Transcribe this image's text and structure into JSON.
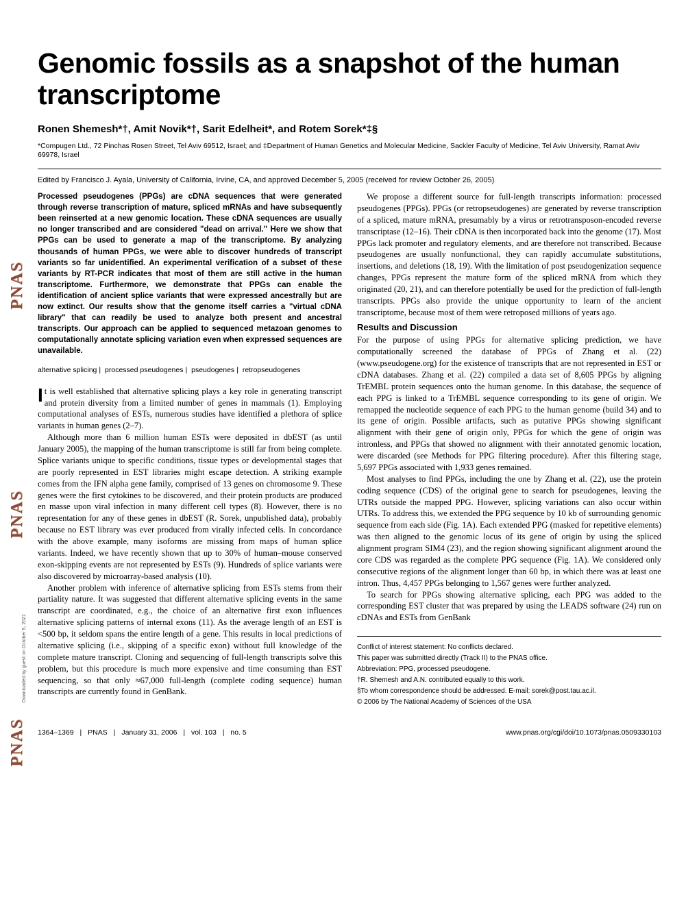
{
  "journal": {
    "strip_label": "PNAS",
    "strip_color": "#8b4a3e",
    "strip_shadow": "#d4b896"
  },
  "title": "Genomic fossils as a snapshot of the human transcriptome",
  "authors": "Ronen Shemesh*†, Amit Novik*†, Sarit Edelheit*, and Rotem Sorek*‡§",
  "affiliation": "*Compugen Ltd., 72 Pinchas Rosen Street, Tel Aviv 69512, Israel; and ‡Department of Human Genetics and Molecular Medicine, Sackler Faculty of Medicine, Tel Aviv University, Ramat Aviv 69978, Israel",
  "edited": "Edited by Francisco J. Ayala, University of California, Irvine, CA, and approved December 5, 2005 (received for review October 26, 2005)",
  "abstract": "Processed pseudogenes (PPGs) are cDNA sequences that were generated through reverse transcription of mature, spliced mRNAs and have subsequently been reinserted at a new genomic location. These cDNA sequences are usually no longer transcribed and are considered \"dead on arrival.\" Here we show that PPGs can be used to generate a map of the transcriptome. By analyzing thousands of human PPGs, we were able to discover hundreds of transcript variants so far unidentified. An experimental verification of a subset of these variants by RT-PCR indicates that most of them are still active in the human transcriptome. Furthermore, we demonstrate that PPGs can enable the identification of ancient splice variants that were expressed ancestrally but are now extinct. Our results show that the genome itself carries a \"virtual cDNA library\" that can readily be used to analyze both present and ancestral transcripts. Our approach can be applied to sequenced metazoan genomes to computationally annotate splicing variation even when expressed sequences are unavailable.",
  "keywords": [
    "alternative splicing",
    "processed pseudogenes",
    "pseudogenes",
    "retropseudogenes"
  ],
  "body": {
    "col1": {
      "p1_dropcap": "I",
      "p1": "t is well established that alternative splicing plays a key role in generating transcript and protein diversity from a limited number of genes in mammals (1). Employing computational analyses of ESTs, numerous studies have identified a plethora of splice variants in human genes (2–7).",
      "p2": "Although more than 6 million human ESTs were deposited in dbEST (as until January 2005), the mapping of the human transcriptome is still far from being complete. Splice variants unique to specific conditions, tissue types or developmental stages that are poorly represented in EST libraries might escape detection. A striking example comes from the IFN alpha gene family, comprised of 13 genes on chromosome 9. These genes were the first cytokines to be discovered, and their protein products are produced en masse upon viral infection in many different cell types (8). However, there is no representation for any of these genes in dbEST (R. Sorek, unpublished data), probably because no EST library was ever produced from virally infected cells. In concordance with the above example, many isoforms are missing from maps of human splice variants. Indeed, we have recently shown that up to 30% of human–mouse conserved exon-skipping events are not represented by ESTs (9). Hundreds of splice variants were also discovered by microarray-based analysis (10).",
      "p3": "Another problem with inference of alternative splicing from ESTs stems from their partiality nature. It was suggested that different alternative splicing events in the same transcript are coordinated, e.g., the choice of an alternative first exon influences alternative splicing patterns of internal exons (11). As the average length of an EST is <500 bp, it seldom spans the entire length of a gene. This results in local predictions of alternative splicing (i.e., skipping of a specific exon) without full knowledge of the complete mature transcript. Cloning and sequencing of full-length transcripts solve this problem, but this procedure is much more expensive and time consuming than EST sequencing, so that only ≈67,000 full-length (complete coding sequence) human transcripts are currently found in GenBank."
    },
    "col2": {
      "p1": "We propose a different source for full-length transcripts information: processed pseudogenes (PPGs). PPGs (or retropseudogenes) are generated by reverse transcription of a spliced, mature mRNA, presumably by a virus or retrotransposon-encoded reverse transcriptase (12–16). Their cDNA is then incorporated back into the genome (17). Most PPGs lack promoter and regulatory elements, and are therefore not transcribed. Because pseudogenes are usually nonfunctional, they can rapidly accumulate substitutions, insertions, and deletions (18, 19). With the limitation of post pseudogenization sequence changes, PPGs represent the mature form of the spliced mRNA from which they originated (20, 21), and can therefore potentially be used for the prediction of full-length transcripts. PPGs also provide the unique opportunity to learn of the ancient transcriptome, because most of them were retroposed millions of years ago.",
      "section_head": "Results and Discussion",
      "p2": "For the purpose of using PPGs for alternative splicing prediction, we have computationally screened the database of PPGs of Zhang et al. (22) (www.pseudogene.org) for the existence of transcripts that are not represented in EST or cDNA databases. Zhang et al. (22) compiled a data set of 8,605 PPGs by aligning TrEMBL protein sequences onto the human genome. In this database, the sequence of each PPG is linked to a TrEMBL sequence corresponding to its gene of origin. We remapped the nucleotide sequence of each PPG to the human genome (build 34) and to its gene of origin. Possible artifacts, such as putative PPGs showing significant alignment with their gene of origin only, PPGs for which the gene of origin was intronless, and PPGs that showed no alignment with their annotated genomic location, were discarded (see Methods for PPG filtering procedure). After this filtering stage, 5,697 PPGs associated with 1,933 genes remained.",
      "p3": "Most analyses to find PPGs, including the one by Zhang et al. (22), use the protein coding sequence (CDS) of the original gene to search for pseudogenes, leaving the UTRs outside the mapped PPG. However, splicing variations can also occur within UTRs. To address this, we extended the PPG sequence by 10 kb of surrounding genomic sequence from each side (Fig. 1A). Each extended PPG (masked for repetitive elements) was then aligned to the genomic locus of its gene of origin by using the spliced alignment program SIM4 (23), and the region showing significant alignment around the core CDS was regarded as the complete PPG sequence (Fig. 1A). We considered only consecutive regions of the alignment longer than 60 bp, in which there was at least one intron. Thus, 4,457 PPGs belonging to 1,567 genes were further analyzed.",
      "p4": "To search for PPGs showing alternative splicing, each PPG was added to the corresponding EST cluster that was prepared by using the LEADS software (24) run on cDNAs and ESTs from GenBank"
    }
  },
  "footnotes": {
    "f1": "Conflict of interest statement: No conflicts declared.",
    "f2": "This paper was submitted directly (Track II) to the PNAS office.",
    "f3": "Abbreviation: PPG, processed pseudogene.",
    "f4": "†R. Shemesh and A.N. contributed equally to this work.",
    "f5": "§To whom correspondence should be addressed. E-mail: sorek@post.tau.ac.il.",
    "f6": "© 2006 by The National Academy of Sciences of the USA"
  },
  "footer": {
    "left_pages": "1364–1369",
    "left_journal": "PNAS",
    "left_date": "January 31, 2006",
    "left_vol": "vol. 103",
    "left_no": "no. 5",
    "right": "www.pnas.org/cgi/doi/10.1073/pnas.0509330103"
  },
  "download_note": "Downloaded by guest on October 5, 2021",
  "typography": {
    "title_fontsize": 41,
    "body_fontsize": 12.5,
    "abstract_fontsize": 11.5,
    "authors_fontsize": 15,
    "footnote_fontsize": 10
  },
  "colors": {
    "text": "#000000",
    "background": "#ffffff",
    "pnas_strip": "#8b4a3e"
  }
}
